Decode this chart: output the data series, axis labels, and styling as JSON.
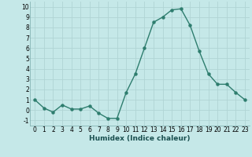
{
  "x": [
    0,
    1,
    2,
    3,
    4,
    5,
    6,
    7,
    8,
    9,
    10,
    11,
    12,
    13,
    14,
    15,
    16,
    17,
    18,
    19,
    20,
    21,
    22,
    23
  ],
  "y": [
    1,
    0.2,
    -0.2,
    0.5,
    0.1,
    0.1,
    0.4,
    -0.3,
    -0.8,
    -0.8,
    1.7,
    3.5,
    6.0,
    8.5,
    9.0,
    9.7,
    9.8,
    8.2,
    5.7,
    3.5,
    2.5,
    2.5,
    1.7,
    1.0
  ],
  "line_color": "#2e7d6e",
  "marker": "o",
  "marker_size": 2.2,
  "background_color": "#c5e8e8",
  "grid_color": "#b0d4d4",
  "xlabel": "Humidex (Indice chaleur)",
  "xlim": [
    -0.5,
    23.5
  ],
  "ylim": [
    -1.5,
    10.5
  ],
  "yticks": [
    -1,
    0,
    1,
    2,
    3,
    4,
    5,
    6,
    7,
    8,
    9,
    10
  ],
  "xticks": [
    0,
    1,
    2,
    3,
    4,
    5,
    6,
    7,
    8,
    9,
    10,
    11,
    12,
    13,
    14,
    15,
    16,
    17,
    18,
    19,
    20,
    21,
    22,
    23
  ],
  "xlabel_fontsize": 6.5,
  "tick_fontsize": 5.5,
  "line_width": 1.0
}
